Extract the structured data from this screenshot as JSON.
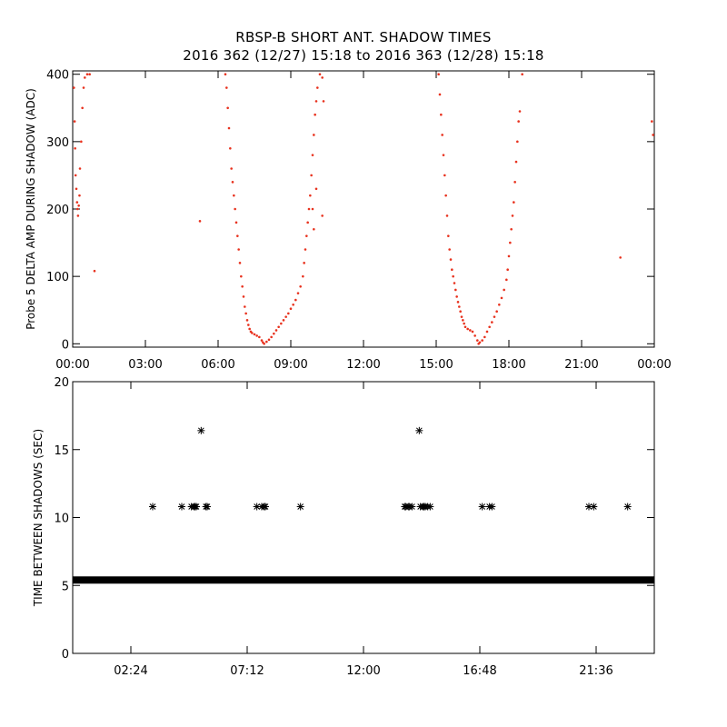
{
  "title_line1": "RBSP-B SHORT ANT. SHADOW TIMES",
  "title_line2": "2016 362 (12/27) 15:18 to 2016 363 (12/28) 15:18",
  "colors": {
    "top_points": "#e8321e",
    "bottom_points": "#000000",
    "axes": "#000000"
  },
  "chart_data": [
    {
      "type": "scatter",
      "ylabel": "Probe 5 DELTA AMP DURING SHADOW (ADC)",
      "xlim_hours": [
        0,
        24
      ],
      "ylim": [
        -5,
        405
      ],
      "x_ticks": [
        {
          "hour": 0,
          "label": "00:00"
        },
        {
          "hour": 3,
          "label": "03:00"
        },
        {
          "hour": 6,
          "label": "06:00"
        },
        {
          "hour": 9,
          "label": "09:00"
        },
        {
          "hour": 12,
          "label": "12:00"
        },
        {
          "hour": 15,
          "label": "15:00"
        },
        {
          "hour": 18,
          "label": "18:00"
        },
        {
          "hour": 21,
          "label": "21:00"
        },
        {
          "hour": 24,
          "label": "00:00"
        }
      ],
      "y_ticks": [
        0,
        100,
        200,
        300,
        400
      ],
      "grid": false,
      "series": [
        {
          "points": [
            [
              0.05,
              380
            ],
            [
              0.08,
              330
            ],
            [
              0.1,
              290
            ],
            [
              0.12,
              250
            ],
            [
              0.15,
              230
            ],
            [
              0.18,
              210
            ],
            [
              0.2,
              200
            ],
            [
              0.22,
              190
            ],
            [
              0.25,
              205
            ],
            [
              0.28,
              220
            ],
            [
              0.3,
              260
            ],
            [
              0.35,
              300
            ],
            [
              0.4,
              350
            ],
            [
              0.45,
              380
            ],
            [
              0.5,
              395
            ],
            [
              0.6,
              400
            ],
            [
              0.7,
              400
            ],
            [
              0.9,
              108
            ],
            [
              5.25,
              182
            ],
            [
              6.3,
              400
            ],
            [
              6.35,
              380
            ],
            [
              6.4,
              350
            ],
            [
              6.45,
              320
            ],
            [
              6.5,
              290
            ],
            [
              6.55,
              260
            ],
            [
              6.6,
              240
            ],
            [
              6.65,
              220
            ],
            [
              6.7,
              200
            ],
            [
              6.75,
              180
            ],
            [
              6.8,
              160
            ],
            [
              6.85,
              140
            ],
            [
              6.9,
              120
            ],
            [
              6.95,
              100
            ],
            [
              7.0,
              85
            ],
            [
              7.05,
              70
            ],
            [
              7.1,
              55
            ],
            [
              7.15,
              45
            ],
            [
              7.2,
              35
            ],
            [
              7.25,
              28
            ],
            [
              7.3,
              22
            ],
            [
              7.35,
              18
            ],
            [
              7.4,
              16
            ],
            [
              7.5,
              14
            ],
            [
              7.6,
              12
            ],
            [
              7.7,
              10
            ],
            [
              7.8,
              5
            ],
            [
              7.85,
              2
            ],
            [
              7.9,
              0
            ],
            [
              8.0,
              3
            ],
            [
              8.1,
              6
            ],
            [
              8.2,
              10
            ],
            [
              8.3,
              15
            ],
            [
              8.4,
              20
            ],
            [
              8.5,
              25
            ],
            [
              8.6,
              30
            ],
            [
              8.7,
              35
            ],
            [
              8.8,
              40
            ],
            [
              8.9,
              45
            ],
            [
              9.0,
              52
            ],
            [
              9.1,
              58
            ],
            [
              9.2,
              65
            ],
            [
              9.3,
              75
            ],
            [
              9.4,
              85
            ],
            [
              9.5,
              100
            ],
            [
              9.55,
              120
            ],
            [
              9.6,
              140
            ],
            [
              9.65,
              160
            ],
            [
              9.7,
              180
            ],
            [
              9.75,
              200
            ],
            [
              9.8,
              220
            ],
            [
              9.85,
              250
            ],
            [
              9.9,
              280
            ],
            [
              9.95,
              310
            ],
            [
              10.0,
              340
            ],
            [
              10.05,
              360
            ],
            [
              10.1,
              380
            ],
            [
              10.2,
              400
            ],
            [
              10.3,
              395
            ],
            [
              9.9,
              200
            ],
            [
              9.95,
              170
            ],
            [
              10.05,
              230
            ],
            [
              10.3,
              190
            ],
            [
              10.35,
              360
            ],
            [
              15.1,
              400
            ],
            [
              15.15,
              370
            ],
            [
              15.2,
              340
            ],
            [
              15.25,
              310
            ],
            [
              15.3,
              280
            ],
            [
              15.35,
              250
            ],
            [
              15.4,
              220
            ],
            [
              15.45,
              190
            ],
            [
              15.5,
              160
            ],
            [
              15.55,
              140
            ],
            [
              15.6,
              125
            ],
            [
              15.65,
              110
            ],
            [
              15.7,
              100
            ],
            [
              15.75,
              90
            ],
            [
              15.8,
              80
            ],
            [
              15.85,
              70
            ],
            [
              15.9,
              62
            ],
            [
              15.95,
              55
            ],
            [
              16.0,
              48
            ],
            [
              16.05,
              40
            ],
            [
              16.1,
              35
            ],
            [
              16.15,
              30
            ],
            [
              16.2,
              25
            ],
            [
              16.3,
              22
            ],
            [
              16.4,
              20
            ],
            [
              16.5,
              18
            ],
            [
              16.6,
              12
            ],
            [
              16.7,
              5
            ],
            [
              16.75,
              0
            ],
            [
              16.8,
              2
            ],
            [
              16.9,
              5
            ],
            [
              17.0,
              10
            ],
            [
              17.1,
              18
            ],
            [
              17.2,
              25
            ],
            [
              17.3,
              32
            ],
            [
              17.4,
              40
            ],
            [
              17.5,
              48
            ],
            [
              17.6,
              58
            ],
            [
              17.7,
              68
            ],
            [
              17.8,
              80
            ],
            [
              17.9,
              95
            ],
            [
              17.95,
              110
            ],
            [
              18.0,
              130
            ],
            [
              18.05,
              150
            ],
            [
              18.1,
              170
            ],
            [
              18.15,
              190
            ],
            [
              18.2,
              210
            ],
            [
              18.25,
              240
            ],
            [
              18.3,
              270
            ],
            [
              18.35,
              300
            ],
            [
              18.4,
              330
            ],
            [
              18.45,
              345
            ],
            [
              18.55,
              400
            ],
            [
              22.6,
              128
            ],
            [
              23.9,
              330
            ],
            [
              23.95,
              310
            ]
          ]
        }
      ]
    },
    {
      "type": "scatter",
      "ylabel": "TIME BETWEEN SHADOWS (SEC)",
      "xlim_hours": [
        0,
        24
      ],
      "ylim": [
        0,
        20
      ],
      "x_ticks": [
        {
          "hour": 2.4,
          "label": "02:24"
        },
        {
          "hour": 7.2,
          "label": "07:12"
        },
        {
          "hour": 12.0,
          "label": "12:00"
        },
        {
          "hour": 16.8,
          "label": "16:48"
        },
        {
          "hour": 21.6,
          "label": "21:36"
        }
      ],
      "y_ticks": [
        0,
        5,
        10,
        15,
        20
      ],
      "grid": false,
      "baseline": {
        "value": 5.4,
        "from_hour": 0,
        "to_hour": 24
      },
      "series": [
        {
          "points": [
            [
              3.3,
              10.8
            ],
            [
              4.5,
              10.8
            ],
            [
              4.9,
              10.8
            ],
            [
              5.0,
              10.8
            ],
            [
              5.05,
              10.8
            ],
            [
              5.1,
              10.8
            ],
            [
              5.3,
              16.4
            ],
            [
              5.5,
              10.8
            ],
            [
              5.55,
              10.8
            ],
            [
              7.6,
              10.8
            ],
            [
              7.8,
              10.8
            ],
            [
              7.9,
              10.8
            ],
            [
              7.95,
              10.8
            ],
            [
              9.4,
              10.8
            ],
            [
              13.7,
              10.8
            ],
            [
              13.75,
              10.8
            ],
            [
              13.85,
              10.8
            ],
            [
              13.9,
              10.8
            ],
            [
              14.0,
              10.8
            ],
            [
              14.3,
              16.4
            ],
            [
              14.35,
              10.8
            ],
            [
              14.45,
              10.8
            ],
            [
              14.5,
              10.8
            ],
            [
              14.55,
              10.8
            ],
            [
              14.65,
              10.8
            ],
            [
              14.75,
              10.8
            ],
            [
              16.9,
              10.8
            ],
            [
              17.2,
              10.8
            ],
            [
              17.3,
              10.8
            ],
            [
              21.3,
              10.8
            ],
            [
              21.5,
              10.8
            ],
            [
              22.9,
              10.8
            ]
          ]
        }
      ]
    }
  ]
}
